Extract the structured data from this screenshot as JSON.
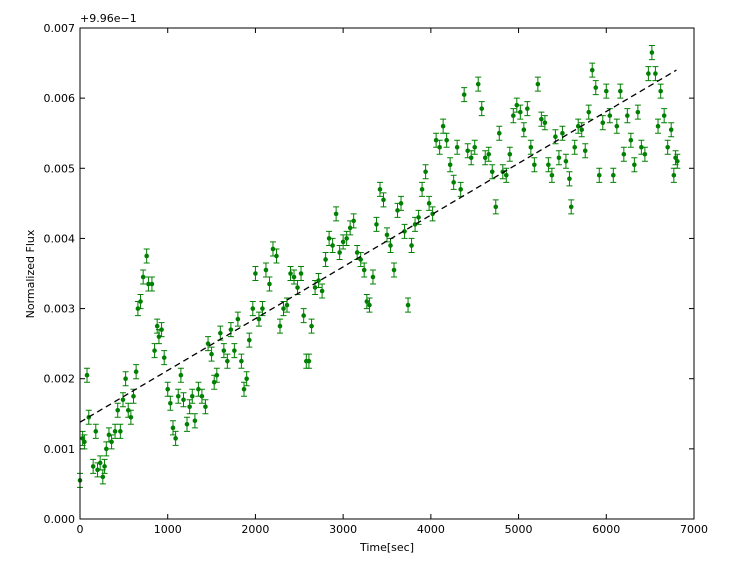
{
  "chart_data": {
    "type": "scatter",
    "x_label": "Time[sec]",
    "y_label": "Normalized Flux",
    "y_offset_label": "+9.96e−1",
    "xlim": [
      0,
      7000
    ],
    "xticks": [
      0,
      1000,
      2000,
      3000,
      4000,
      5000,
      6000,
      7000
    ],
    "ylim": [
      0,
      0.007
    ],
    "yticks": [
      {
        "value": 0,
        "label": "0.000"
      },
      {
        "value": 0.001,
        "label": "0.001"
      },
      {
        "value": 0.002,
        "label": "0.002"
      },
      {
        "value": 0.003,
        "label": "0.003"
      },
      {
        "value": 0.004,
        "label": "0.004"
      },
      {
        "value": 0.005,
        "label": "0.005"
      },
      {
        "value": 0.006,
        "label": "0.006"
      },
      {
        "value": 0.007,
        "label": "0.007"
      }
    ],
    "series": [
      {
        "color": "#008000",
        "error": 0.0001,
        "x": [
          0,
          30,
          50,
          80,
          100,
          150,
          180,
          200,
          230,
          260,
          280,
          300,
          330,
          360,
          400,
          430,
          460,
          490,
          520,
          550,
          580,
          610,
          640,
          660,
          690,
          720,
          760,
          780,
          820,
          850,
          880,
          900,
          930,
          960,
          1000,
          1030,
          1060,
          1090,
          1120,
          1150,
          1180,
          1220,
          1250,
          1280,
          1310,
          1350,
          1390,
          1430,
          1460,
          1500,
          1530,
          1560,
          1600,
          1640,
          1680,
          1720,
          1760,
          1800,
          1840,
          1870,
          1900,
          1930,
          1970,
          2000,
          2040,
          2080,
          2120,
          2160,
          2200,
          2240,
          2280,
          2320,
          2360,
          2400,
          2440,
          2480,
          2520,
          2550,
          2580,
          2610,
          2640,
          2680,
          2720,
          2760,
          2800,
          2840,
          2880,
          2920,
          2960,
          3000,
          3040,
          3080,
          3120,
          3160,
          3200,
          3240,
          3270,
          3300,
          3340,
          3380,
          3420,
          3460,
          3500,
          3540,
          3580,
          3620,
          3660,
          3700,
          3740,
          3780,
          3820,
          3860,
          3900,
          3940,
          3980,
          4020,
          4060,
          4100,
          4140,
          4180,
          4220,
          4260,
          4300,
          4340,
          4380,
          4420,
          4460,
          4500,
          4540,
          4580,
          4620,
          4660,
          4700,
          4740,
          4780,
          4820,
          4860,
          4900,
          4940,
          4980,
          5020,
          5060,
          5100,
          5140,
          5180,
          5220,
          5260,
          5300,
          5340,
          5380,
          5420,
          5460,
          5500,
          5540,
          5580,
          5600,
          5640,
          5680,
          5720,
          5760,
          5800,
          5840,
          5880,
          5920,
          5960,
          6000,
          6040,
          6080,
          6120,
          6160,
          6200,
          6240,
          6280,
          6320,
          6360,
          6400,
          6440,
          6480,
          6520,
          6560,
          6590,
          6620,
          6660,
          6700,
          6740,
          6770,
          6790,
          6810
        ],
        "values": [
          0.00055,
          0.00115,
          0.0011,
          0.00205,
          0.00145,
          0.00075,
          0.00125,
          0.0007,
          0.0008,
          0.0006,
          0.00075,
          0.001,
          0.0012,
          0.0011,
          0.00125,
          0.00155,
          0.00125,
          0.0017,
          0.002,
          0.00155,
          0.00145,
          0.00175,
          0.0021,
          0.003,
          0.0031,
          0.00345,
          0.00375,
          0.00335,
          0.00335,
          0.0024,
          0.00275,
          0.0026,
          0.0027,
          0.0023,
          0.00185,
          0.00165,
          0.0013,
          0.00115,
          0.00175,
          0.00205,
          0.0017,
          0.00135,
          0.0016,
          0.00175,
          0.0014,
          0.00185,
          0.00175,
          0.0016,
          0.0025,
          0.00235,
          0.00195,
          0.00205,
          0.00265,
          0.0024,
          0.00225,
          0.0027,
          0.0024,
          0.00285,
          0.00225,
          0.00185,
          0.002,
          0.00255,
          0.003,
          0.0035,
          0.00285,
          0.003,
          0.00355,
          0.00335,
          0.00385,
          0.00375,
          0.00275,
          0.003,
          0.00305,
          0.0035,
          0.00345,
          0.0033,
          0.0035,
          0.0029,
          0.00225,
          0.00225,
          0.00275,
          0.0033,
          0.0034,
          0.00325,
          0.0037,
          0.004,
          0.0039,
          0.00435,
          0.0038,
          0.00395,
          0.004,
          0.00415,
          0.00425,
          0.0038,
          0.0037,
          0.00355,
          0.0031,
          0.00305,
          0.00345,
          0.0042,
          0.0047,
          0.00455,
          0.00405,
          0.0039,
          0.00355,
          0.0044,
          0.0045,
          0.0041,
          0.00305,
          0.0039,
          0.0042,
          0.0043,
          0.0047,
          0.00495,
          0.0045,
          0.00435,
          0.0054,
          0.0053,
          0.0056,
          0.0054,
          0.00505,
          0.0048,
          0.0053,
          0.0047,
          0.00605,
          0.00525,
          0.00515,
          0.0053,
          0.0062,
          0.00585,
          0.00515,
          0.0052,
          0.00495,
          0.00445,
          0.0055,
          0.00495,
          0.0049,
          0.0052,
          0.00575,
          0.0059,
          0.0058,
          0.00555,
          0.00585,
          0.0053,
          0.00505,
          0.0062,
          0.0057,
          0.00565,
          0.00505,
          0.0049,
          0.00545,
          0.00515,
          0.0055,
          0.0051,
          0.00485,
          0.00445,
          0.0053,
          0.0056,
          0.00555,
          0.00525,
          0.0058,
          0.0064,
          0.00615,
          0.0049,
          0.00565,
          0.0061,
          0.00575,
          0.0049,
          0.0056,
          0.0061,
          0.0052,
          0.00575,
          0.0054,
          0.00505,
          0.0058,
          0.0053,
          0.0052,
          0.00635,
          0.00665,
          0.00635,
          0.0056,
          0.0061,
          0.00575,
          0.0053,
          0.00555,
          0.0049,
          0.00515,
          0.0051
        ]
      },
      {
        "color": "#000000",
        "style": "dashed",
        "x": [
          0,
          6800
        ],
        "values": [
          0.00138,
          0.0064
        ]
      }
    ]
  }
}
